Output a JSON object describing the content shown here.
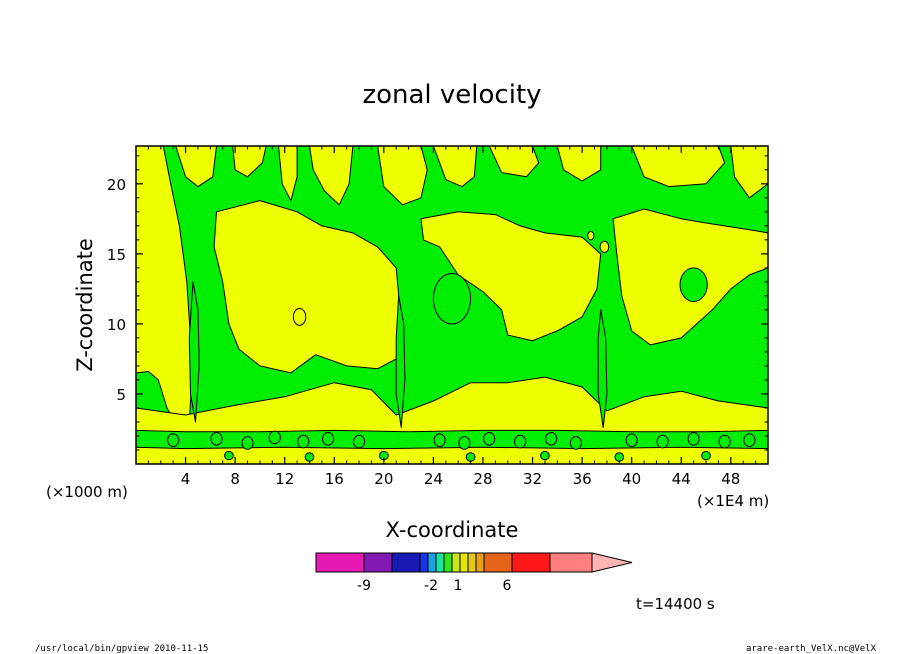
{
  "chart_data": {
    "type": "heatmap",
    "title": "zonal velocity",
    "xlabel": "X-coordinate",
    "ylabel": "Z-coordinate",
    "x_unit": "(×1E4 m)",
    "y_unit": "(×1000 m)",
    "x_ticks": [
      "4",
      "8",
      "12",
      "16",
      "20",
      "24",
      "28",
      "32",
      "36",
      "40",
      "44",
      "48"
    ],
    "y_ticks": [
      "5",
      "10",
      "15",
      "20"
    ],
    "xlim": [
      0,
      51
    ],
    "ylim": [
      0,
      22.7
    ],
    "fill_colors": {
      "positive_band": "#00ee00",
      "near_zero_band": "#eeff00"
    },
    "colorbar": {
      "colors": [
        "#e619b3",
        "#8219b3",
        "#1919b3",
        "#1932e6",
        "#19a0e6",
        "#19e6a0",
        "#32e619",
        "#c8e619",
        "#e6e600",
        "#e6c819",
        "#e6a019",
        "#e66419",
        "#ff1919",
        "#ff7f7f",
        "#ffb4b4"
      ],
      "labels": [
        {
          "text": "-9",
          "value": -9
        },
        {
          "text": "-2",
          "value": -2
        },
        {
          "text": "1",
          "value": 1
        },
        {
          "text": "6",
          "value": 6
        }
      ]
    },
    "time_label": "t=14400 s"
  },
  "footer": {
    "left": "/usr/local/bin/gpview  2010-11-15",
    "right": "arare-earth_VelX.nc@VelX"
  }
}
